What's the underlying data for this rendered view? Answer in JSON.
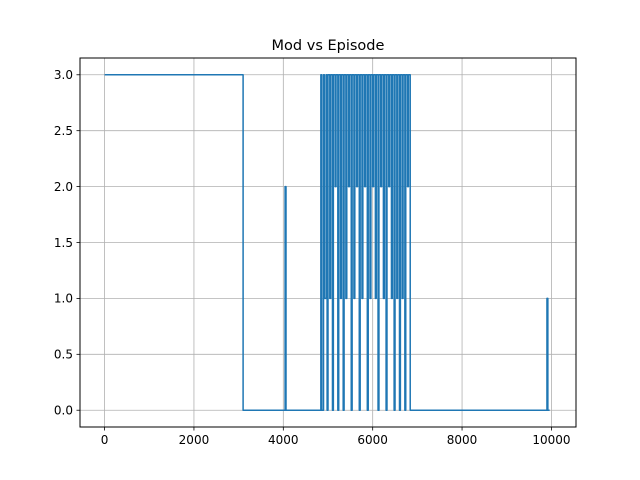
{
  "chart_data": {
    "type": "line",
    "title": "Mod vs Episode",
    "xlabel": "",
    "ylabel": "",
    "xlim": [
      -550,
      10550
    ],
    "ylim": [
      -0.15,
      3.15
    ],
    "xticks": [
      0,
      2000,
      4000,
      6000,
      8000,
      10000
    ],
    "xtick_labels": [
      "0",
      "2000",
      "4000",
      "6000",
      "8000",
      "10000"
    ],
    "yticks": [
      0.0,
      0.5,
      1.0,
      1.5,
      2.0,
      2.5,
      3.0
    ],
    "ytick_labels": [
      "0.0",
      "0.5",
      "1.0",
      "1.5",
      "2.0",
      "2.5",
      "3.0"
    ],
    "grid": true,
    "series": [
      {
        "color": "#1f77b4",
        "x": [
          0,
          3100,
          3100,
          4040,
          4040,
          4060,
          4060,
          4080,
          4080,
          4840,
          4840,
          4860,
          4860,
          4900,
          4900,
          4920,
          4920,
          4960,
          4960,
          4980,
          4980,
          5000,
          5000,
          5040,
          5040,
          5060,
          5060,
          5100,
          5100,
          5120,
          5120,
          5160,
          5160,
          5180,
          5180,
          5220,
          5220,
          5240,
          5240,
          5280,
          5280,
          5300,
          5300,
          5340,
          5340,
          5360,
          5360,
          5400,
          5400,
          5420,
          5420,
          5460,
          5460,
          5480,
          5480,
          5520,
          5520,
          5540,
          5540,
          5580,
          5580,
          5600,
          5600,
          5640,
          5640,
          5660,
          5660,
          5700,
          5700,
          5720,
          5720,
          5760,
          5760,
          5780,
          5780,
          5820,
          5820,
          5840,
          5840,
          5880,
          5880,
          5900,
          5900,
          5940,
          5940,
          5960,
          5960,
          6000,
          6000,
          6020,
          6020,
          6060,
          6060,
          6080,
          6080,
          6120,
          6120,
          6140,
          6140,
          6180,
          6180,
          6200,
          6200,
          6240,
          6240,
          6260,
          6260,
          6300,
          6300,
          6320,
          6320,
          6360,
          6360,
          6380,
          6380,
          6420,
          6420,
          6440,
          6440,
          6480,
          6480,
          6500,
          6500,
          6540,
          6540,
          6560,
          6560,
          6600,
          6600,
          6620,
          6620,
          6660,
          6660,
          6680,
          6680,
          6720,
          6720,
          6740,
          6740,
          6780,
          6780,
          6800,
          6800,
          6840,
          6840,
          6880,
          6880,
          9900,
          9900,
          9920,
          9920,
          9960
        ],
        "y": [
          3,
          3,
          0,
          0,
          2,
          2,
          0,
          0,
          0,
          0,
          3,
          3,
          0,
          0,
          3,
          3,
          1,
          1,
          3,
          3,
          0,
          0,
          3,
          3,
          1,
          1,
          3,
          3,
          0,
          0,
          3,
          3,
          2,
          2,
          3,
          3,
          0,
          0,
          3,
          3,
          1,
          1,
          3,
          3,
          0,
          0,
          3,
          3,
          1,
          1,
          3,
          3,
          2,
          2,
          3,
          3,
          0,
          0,
          3,
          3,
          1,
          1,
          3,
          3,
          2,
          2,
          3,
          3,
          0,
          0,
          3,
          3,
          1,
          1,
          3,
          3,
          2,
          2,
          3,
          3,
          0,
          0,
          3,
          3,
          1,
          1,
          3,
          3,
          2,
          2,
          3,
          3,
          1,
          1,
          3,
          3,
          0,
          0,
          3,
          3,
          2,
          2,
          3,
          3,
          1,
          1,
          3,
          3,
          0,
          0,
          3,
          3,
          2,
          2,
          3,
          3,
          1,
          1,
          3,
          3,
          0,
          0,
          3,
          3,
          1,
          1,
          3,
          3,
          0,
          0,
          3,
          3,
          1,
          1,
          3,
          3,
          0,
          0,
          3,
          3,
          2,
          2,
          3,
          3,
          0,
          0,
          0,
          0,
          1,
          1,
          0,
          0
        ]
      }
    ]
  }
}
